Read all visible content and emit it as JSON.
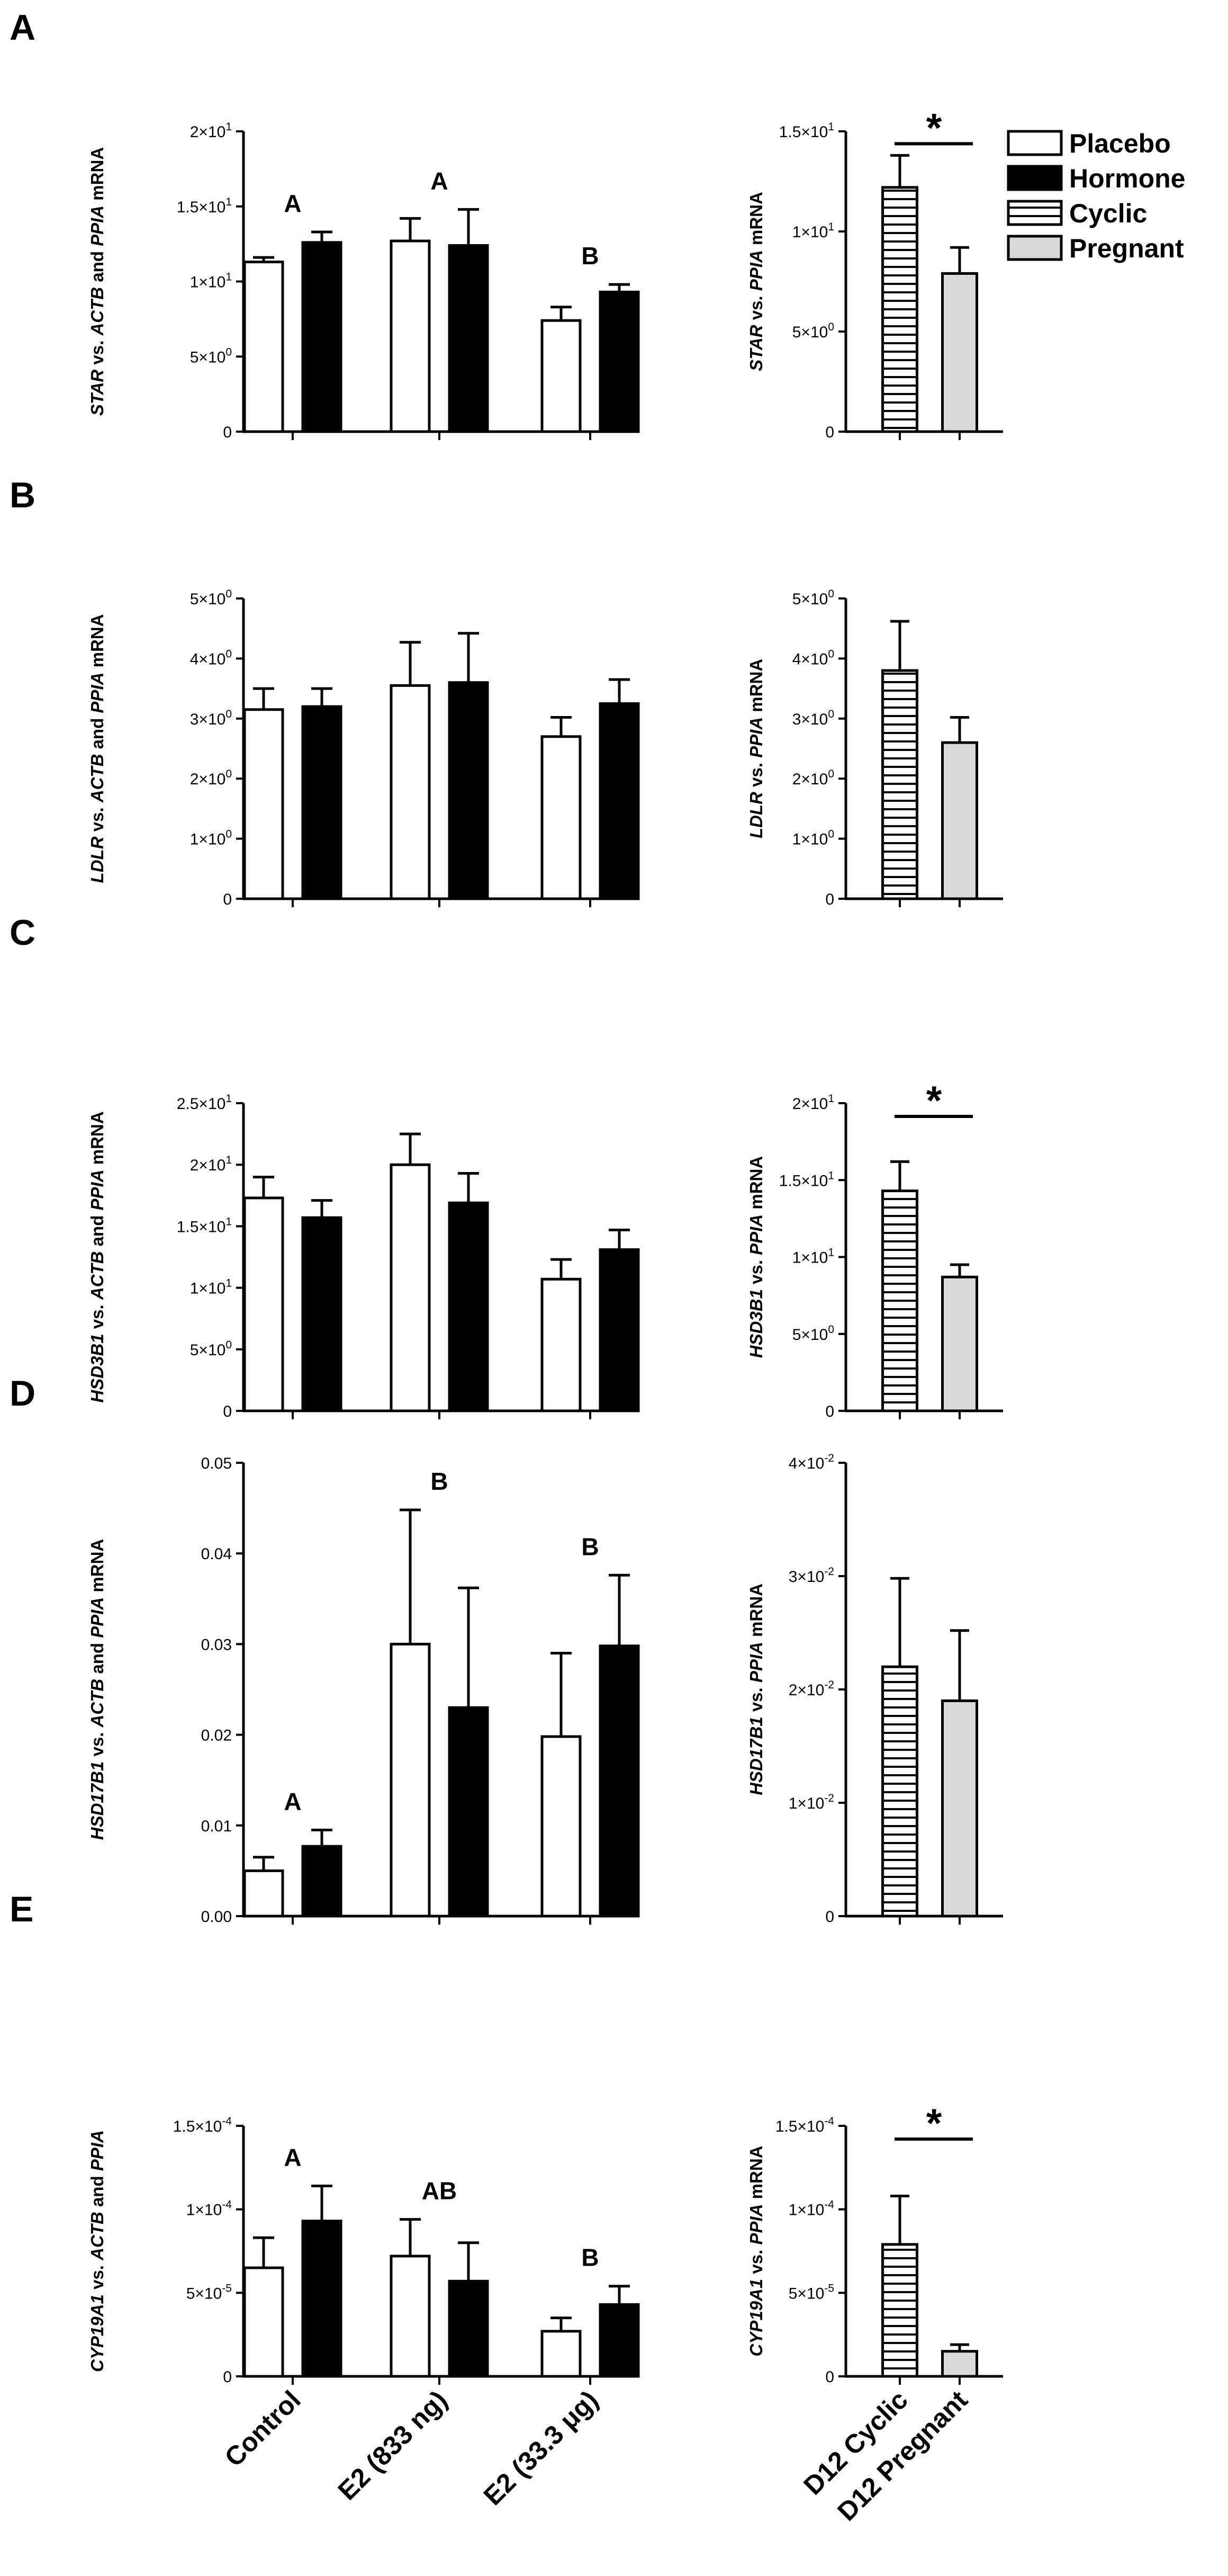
{
  "legend": [
    {
      "label": "Placebo",
      "pattern": "open"
    },
    {
      "label": "Hormone",
      "pattern": "solid"
    },
    {
      "label": "Cyclic",
      "pattern": "stripes"
    },
    {
      "label": "Pregnant",
      "pattern": "gray"
    }
  ],
  "colors": {
    "ink": "#000000",
    "hormone": "#000000",
    "placebo": "#ffffff",
    "pregnant": "#d9d9d9"
  },
  "groups": [
    "Control",
    "E2 (833 ng)",
    "E2 (33.3 μg)"
  ],
  "right_groups": [
    "D12 Cyclic",
    "D12 Pregnant"
  ],
  "chart_data": [
    {
      "panel": "A",
      "type": "bar",
      "title": "",
      "ylabel_left": [
        {
          "t": "STAR",
          "i": true
        },
        {
          "t": " vs. ",
          "i": false
        },
        {
          "t": "ACTB",
          "i": true
        },
        {
          "t": " and ",
          "i": false
        },
        {
          "t": "PPIA",
          "i": true
        },
        {
          "t": " mRNA",
          "i": false
        }
      ],
      "ylim": [
        0,
        20
      ],
      "ticks": [
        0,
        5,
        10,
        15,
        20
      ],
      "tick_labels": [
        {
          "m": "0",
          "e": ""
        },
        {
          "m": "5×10",
          "e": "0"
        },
        {
          "m": "1×10",
          "e": "1"
        },
        {
          "m": "1.5×10",
          "e": "1"
        },
        {
          "m": "2×10",
          "e": "1"
        }
      ],
      "categories": [
        "Control",
        "E2 (833 ng)",
        "E2 (33.3 μg)"
      ],
      "series": [
        {
          "name": "Placebo",
          "values": [
            11.3,
            12.7,
            7.4
          ],
          "errors": [
            0.3,
            1.5,
            0.9
          ]
        },
        {
          "name": "Hormone",
          "values": [
            12.6,
            12.4,
            9.3
          ],
          "errors": [
            0.7,
            2.4,
            0.5
          ]
        }
      ],
      "group_letters": [
        "A",
        "A",
        "B"
      ],
      "right": {
        "ylabel": [
          {
            "t": "STAR",
            "i": true
          },
          {
            "t": " vs. ",
            "i": false
          },
          {
            "t": "PPIA",
            "i": true
          },
          {
            "t": " mRNA",
            "i": false
          }
        ],
        "ylim": [
          0,
          15
        ],
        "ticks": [
          0,
          5,
          10,
          15
        ],
        "tick_labels": [
          {
            "m": "0",
            "e": ""
          },
          {
            "m": "5×10",
            "e": "0"
          },
          {
            "m": "1×10",
            "e": "1"
          },
          {
            "m": "1.5×10",
            "e": "1"
          }
        ],
        "values": [
          12.2,
          7.9
        ],
        "errors": [
          1.6,
          1.3
        ],
        "significance": "*"
      }
    },
    {
      "panel": "B",
      "type": "bar",
      "title": "",
      "ylabel_left": [
        {
          "t": "LDLR",
          "i": true
        },
        {
          "t": " vs. ",
          "i": false
        },
        {
          "t": "ACTB",
          "i": true
        },
        {
          "t": " and ",
          "i": false
        },
        {
          "t": "PPIA",
          "i": true
        },
        {
          "t": " mRNA",
          "i": false
        }
      ],
      "ylim": [
        0,
        5
      ],
      "ticks": [
        0,
        1,
        2,
        3,
        4,
        5
      ],
      "tick_labels": [
        {
          "m": "0",
          "e": ""
        },
        {
          "m": "1×10",
          "e": "0"
        },
        {
          "m": "2×10",
          "e": "0"
        },
        {
          "m": "3×10",
          "e": "0"
        },
        {
          "m": "4×10",
          "e": "0"
        },
        {
          "m": "5×10",
          "e": "0"
        }
      ],
      "categories": [
        "Control",
        "E2 (833 ng)",
        "E2 (33.3 μg)"
      ],
      "series": [
        {
          "name": "Placebo",
          "values": [
            3.15,
            3.55,
            2.7
          ],
          "errors": [
            0.35,
            0.72,
            0.32
          ]
        },
        {
          "name": "Hormone",
          "values": [
            3.2,
            3.6,
            3.25
          ],
          "errors": [
            0.3,
            0.82,
            0.4
          ]
        }
      ],
      "group_letters": [
        "",
        "",
        ""
      ],
      "right": {
        "ylabel": [
          {
            "t": "LDLR",
            "i": true
          },
          {
            "t": " vs. ",
            "i": false
          },
          {
            "t": "PPIA",
            "i": true
          },
          {
            "t": " mRNA",
            "i": false
          }
        ],
        "ylim": [
          0,
          5
        ],
        "ticks": [
          0,
          1,
          2,
          3,
          4,
          5
        ],
        "tick_labels": [
          {
            "m": "0",
            "e": ""
          },
          {
            "m": "1×10",
            "e": "0"
          },
          {
            "m": "2×10",
            "e": "0"
          },
          {
            "m": "3×10",
            "e": "0"
          },
          {
            "m": "4×10",
            "e": "0"
          },
          {
            "m": "5×10",
            "e": "0"
          }
        ],
        "values": [
          3.8,
          2.6
        ],
        "errors": [
          0.82,
          0.42
        ],
        "significance": ""
      }
    },
    {
      "panel": "C",
      "type": "bar",
      "title": "",
      "ylabel_left": [
        {
          "t": "HSD3B1",
          "i": true
        },
        {
          "t": " vs. ",
          "i": false
        },
        {
          "t": "ACTB",
          "i": true
        },
        {
          "t": " and ",
          "i": false
        },
        {
          "t": "PPIA",
          "i": true
        },
        {
          "t": " mRNA",
          "i": false
        }
      ],
      "ylim": [
        0,
        25
      ],
      "ticks": [
        0,
        5,
        10,
        15,
        20,
        25
      ],
      "tick_labels": [
        {
          "m": "0",
          "e": ""
        },
        {
          "m": "5×10",
          "e": "0"
        },
        {
          "m": "1×10",
          "e": "1"
        },
        {
          "m": "1.5×10",
          "e": "1"
        },
        {
          "m": "2×10",
          "e": "1"
        },
        {
          "m": "2.5×10",
          "e": "1"
        }
      ],
      "categories": [
        "Control",
        "E2 (833 ng)",
        "E2 (33.3 μg)"
      ],
      "series": [
        {
          "name": "Placebo",
          "values": [
            17.3,
            20.0,
            10.7
          ],
          "errors": [
            1.7,
            2.5,
            1.6
          ]
        },
        {
          "name": "Hormone",
          "values": [
            15.7,
            16.9,
            13.1
          ],
          "errors": [
            1.4,
            2.4,
            1.6
          ]
        }
      ],
      "group_letters": [
        "",
        "",
        ""
      ],
      "right": {
        "ylabel": [
          {
            "t": "HSD3B1",
            "i": true
          },
          {
            "t": " vs. ",
            "i": false
          },
          {
            "t": "PPIA",
            "i": true
          },
          {
            "t": " mRNA",
            "i": false
          }
        ],
        "ylim": [
          0,
          20
        ],
        "ticks": [
          0,
          5,
          10,
          15,
          20
        ],
        "tick_labels": [
          {
            "m": "0",
            "e": ""
          },
          {
            "m": "5×10",
            "e": "0"
          },
          {
            "m": "1×10",
            "e": "1"
          },
          {
            "m": "1.5×10",
            "e": "1"
          },
          {
            "m": "2×10",
            "e": "1"
          }
        ],
        "values": [
          14.3,
          8.7
        ],
        "errors": [
          1.9,
          0.8
        ],
        "significance": "*"
      }
    },
    {
      "panel": "D",
      "type": "bar",
      "title": "",
      "ylabel_left": [
        {
          "t": "HSD17B1",
          "i": true
        },
        {
          "t": "  vs. ",
          "i": false
        },
        {
          "t": "ACTB",
          "i": true
        },
        {
          "t": " and ",
          "i": false
        },
        {
          "t": "PPIA",
          "i": true
        },
        {
          "t": " mRNA",
          "i": false
        }
      ],
      "ylim": [
        0,
        0.05
      ],
      "ticks": [
        0,
        0.01,
        0.02,
        0.03,
        0.04,
        0.05
      ],
      "tick_labels": [
        {
          "m": "0.00",
          "e": ""
        },
        {
          "m": "0.01",
          "e": ""
        },
        {
          "m": "0.02",
          "e": ""
        },
        {
          "m": "0.03",
          "e": ""
        },
        {
          "m": "0.04",
          "e": ""
        },
        {
          "m": "0.05",
          "e": ""
        }
      ],
      "categories": [
        "Control",
        "E2 (833 ng)",
        "E2 (33.3 μg)"
      ],
      "series": [
        {
          "name": "Placebo",
          "values": [
            0.005,
            0.03,
            0.0198
          ],
          "errors": [
            0.0015,
            0.0148,
            0.0092
          ]
        },
        {
          "name": "Hormone",
          "values": [
            0.0077,
            0.023,
            0.0298
          ],
          "errors": [
            0.0018,
            0.0132,
            0.0078
          ]
        }
      ],
      "group_letters": [
        "A",
        "B",
        "B"
      ],
      "right": {
        "ylabel": [
          {
            "t": "HSD17B1",
            "i": true
          },
          {
            "t": " vs. ",
            "i": false
          },
          {
            "t": "PPIA",
            "i": true
          },
          {
            "t": " mRNA",
            "i": false
          }
        ],
        "ylim": [
          0,
          0.04
        ],
        "ticks": [
          0,
          0.01,
          0.02,
          0.03,
          0.04
        ],
        "tick_labels": [
          {
            "m": "0",
            "e": ""
          },
          {
            "m": "1×10",
            "e": "-2"
          },
          {
            "m": "2×10",
            "e": "-2"
          },
          {
            "m": "3×10",
            "e": "-2"
          },
          {
            "m": "4×10",
            "e": "-2"
          }
        ],
        "values": [
          0.022,
          0.019
        ],
        "errors": [
          0.0078,
          0.0062
        ],
        "significance": ""
      }
    },
    {
      "panel": "E",
      "type": "bar",
      "title": "",
      "ylabel_left": [
        {
          "t": "CYP19A1",
          "i": true
        },
        {
          "t": " vs. ",
          "i": false
        },
        {
          "t": "ACTB",
          "i": true
        },
        {
          "t": " and ",
          "i": false
        },
        {
          "t": "PPIA",
          "i": true
        }
      ],
      "ylim": [
        0,
        0.00015
      ],
      "ticks": [
        0,
        5e-05,
        0.0001,
        0.00015
      ],
      "tick_labels": [
        {
          "m": "0",
          "e": ""
        },
        {
          "m": "5×10",
          "e": "-5"
        },
        {
          "m": "1×10",
          "e": "-4"
        },
        {
          "m": "1.5×10",
          "e": "-4"
        }
      ],
      "categories": [
        "Control",
        "E2 (833 ng)",
        "E2 (33.3 μg)"
      ],
      "series": [
        {
          "name": "Placebo",
          "values": [
            6.5e-05,
            7.2e-05,
            2.7e-05
          ],
          "errors": [
            1.8e-05,
            2.2e-05,
            8e-06
          ]
        },
        {
          "name": "Hormone",
          "values": [
            9.3e-05,
            5.7e-05,
            4.3e-05
          ],
          "errors": [
            2.1e-05,
            2.3e-05,
            1.1e-05
          ]
        }
      ],
      "group_letters": [
        "A",
        "AB",
        "B"
      ],
      "right": {
        "ylabel": [
          {
            "t": "CYP19A1",
            "i": true
          },
          {
            "t": " vs. ",
            "i": false
          },
          {
            "t": "PPIA",
            "i": true
          },
          {
            "t": " mRNA",
            "i": false
          }
        ],
        "ylim": [
          0,
          0.00015
        ],
        "ticks": [
          0,
          5e-05,
          0.0001,
          0.00015
        ],
        "tick_labels": [
          {
            "m": "0",
            "e": ""
          },
          {
            "m": "5×10",
            "e": "-5"
          },
          {
            "m": "1×10",
            "e": "-4"
          },
          {
            "m": "1.5×10",
            "e": "-4"
          }
        ],
        "values": [
          7.9e-05,
          1.5e-05
        ],
        "errors": [
          2.9e-05,
          4e-06
        ],
        "significance": "*"
      }
    }
  ]
}
